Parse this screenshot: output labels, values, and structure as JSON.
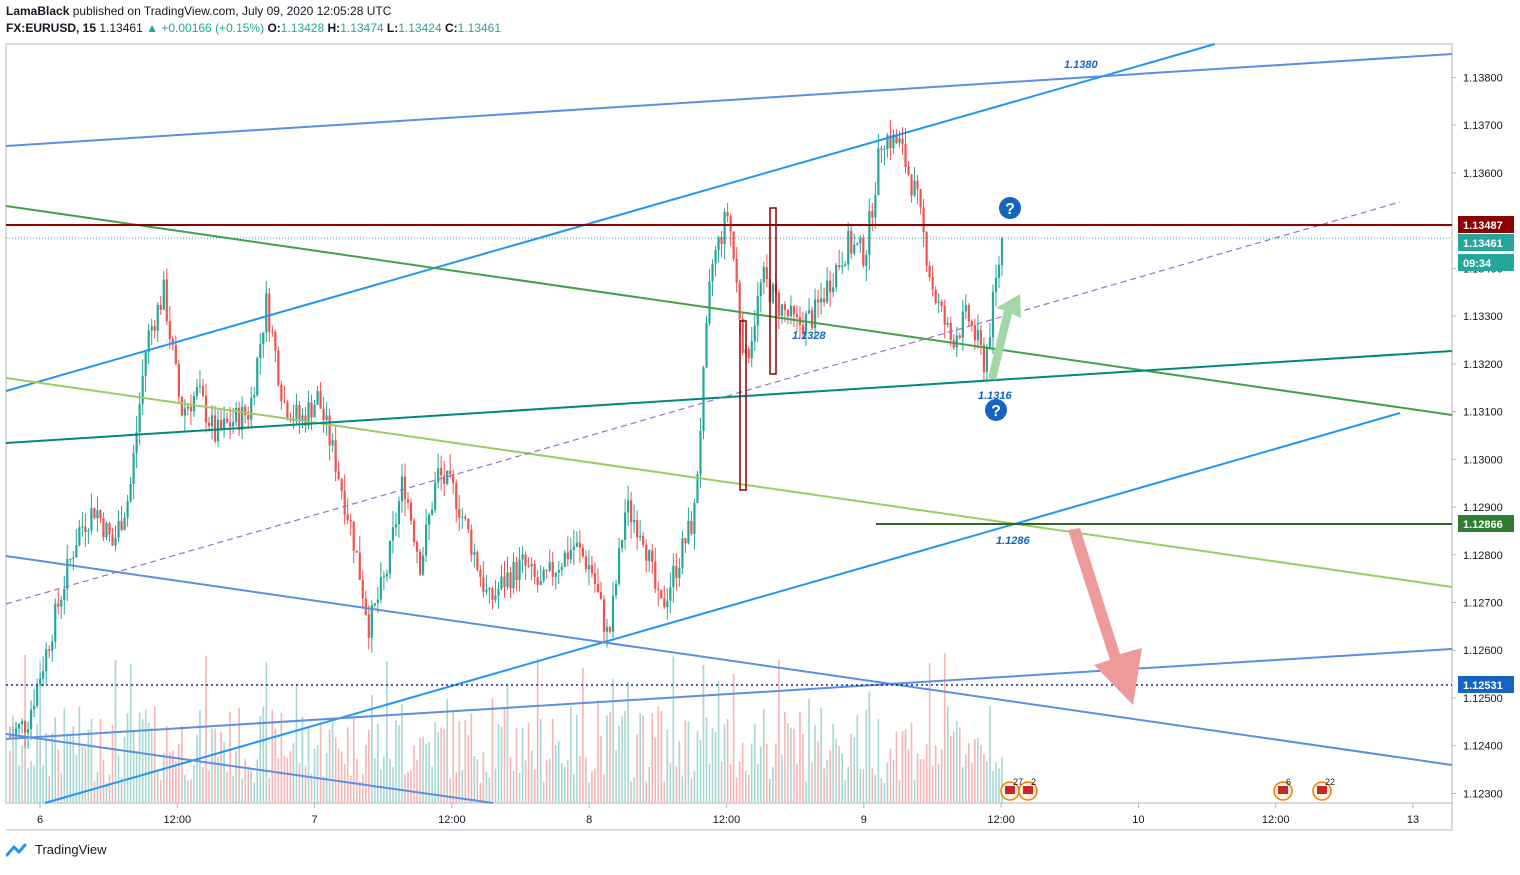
{
  "header": {
    "line1_author": "LamaBlack",
    "line1_rest": "published on TradingView.com, July 09, 2020 12:05:28 UTC",
    "symbol": "FX:EURUSD, 15",
    "last": "1.13461",
    "change": "+0.00166 (+0.15%)",
    "o_label": "O:",
    "o": "1.13428",
    "h_label": "H:",
    "h": "1.13474",
    "l_label": "L:",
    "l": "1.13424",
    "c_label": "C:",
    "c": "1.13461"
  },
  "footer": {
    "brand": "TradingView"
  },
  "colors": {
    "up": "#26a69a",
    "down": "#ef5350",
    "blue_line": "#2196f3",
    "light_blue": "#5b8fe0",
    "green": "#43a047",
    "light_green": "#8bc34a",
    "resistance": "#8b0000",
    "support": "#2e7d32",
    "dotted": "#1a237e"
  },
  "chart_data": {
    "type": "candlestick",
    "symbol": "FX:EURUSD",
    "timeframe": "15",
    "ylim": [
      1.1228,
      1.1387
    ],
    "x_ticks": [
      "6",
      "12:00",
      "7",
      "12:00",
      "8",
      "12:00",
      "9",
      "12:00",
      "10",
      "12:00",
      "13"
    ],
    "y_ticks": [
      "1.13800",
      "1.13700",
      "1.13600",
      "1.13400",
      "1.13300",
      "1.13200",
      "1.13100",
      "1.13000",
      "1.12900",
      "1.12800",
      "1.12700",
      "1.12600",
      "1.12500",
      "1.12400",
      "1.12300"
    ],
    "price_labels": [
      {
        "value": "1.13487",
        "color": "#8b0000"
      },
      {
        "value": "1.13461",
        "color": "#26a69a"
      },
      {
        "value": "09:34",
        "color": "#26a69a"
      },
      {
        "value": "1.12866",
        "color": "#2e7d32"
      },
      {
        "value": "1.12531",
        "color": "#1565c0"
      }
    ],
    "annotations": [
      "1.1380",
      "1.1328",
      "1.1316",
      "1.1286"
    ],
    "levels": [
      1.13487,
      1.13461,
      1.12866,
      1.12531
    ],
    "event_badges": [
      "27",
      "2",
      "6",
      "22"
    ],
    "price_path": [
      1.1242,
      1.1245,
      1.1258,
      1.1272,
      1.1285,
      1.129,
      1.1282,
      1.1293,
      1.1325,
      1.1335,
      1.131,
      1.1314,
      1.1305,
      1.1308,
      1.131,
      1.1333,
      1.1312,
      1.1308,
      1.1313,
      1.13,
      1.1285,
      1.1265,
      1.1276,
      1.1296,
      1.1278,
      1.1297,
      1.1293,
      1.1282,
      1.127,
      1.1275,
      1.1278,
      1.1273,
      1.1278,
      1.1282,
      1.1277,
      1.1262,
      1.129,
      1.1285,
      1.1268,
      1.1278,
      1.1288,
      1.134,
      1.1352,
      1.132,
      1.1338,
      1.1332,
      1.1328,
      1.133,
      1.1338,
      1.1345,
      1.1343,
      1.1368,
      1.1366,
      1.1355,
      1.1335,
      1.1325,
      1.133,
      1.132,
      1.1346
    ]
  }
}
